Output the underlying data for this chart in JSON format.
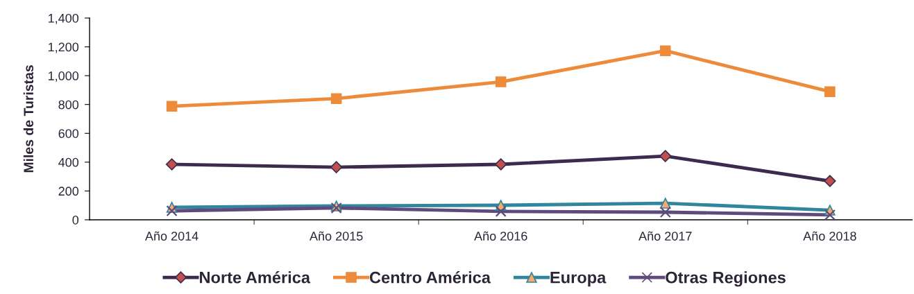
{
  "chart_data": {
    "type": "line",
    "ylabel": "Miles de Turistas",
    "categories": [
      "Año 2014",
      "Año 2015",
      "Año 2016",
      "Año 2017",
      "Año 2018"
    ],
    "series": [
      {
        "name": "Norte América",
        "color": "#3d2b4f",
        "marker": "diamond",
        "colors": [
          "#c0504d",
          "#c0504d",
          "#c0504d",
          "#c0504d",
          "#c0504d"
        ],
        "values": [
          385,
          365,
          385,
          442,
          269
        ]
      },
      {
        "name": "Centro América",
        "color": "#ed8b3a",
        "marker": "square",
        "values": [
          788,
          841,
          957,
          1173,
          889
        ]
      },
      {
        "name": "Europa",
        "color": "#31859c",
        "marker": "triangle",
        "colors": [
          "#f5a96e",
          "#f5a96e",
          "#f5a96e",
          "#f5a96e",
          "#f5a96e"
        ],
        "values": [
          87,
          96,
          101,
          115,
          67
        ]
      },
      {
        "name": "Otras Regiones",
        "color": "#604a7b",
        "marker": "cross",
        "values": [
          62,
          82,
          58,
          53,
          34
        ]
      }
    ],
    "ylim": [
      0,
      1400
    ],
    "yticks": [
      0,
      200,
      400,
      600,
      800,
      {
        "value": 1000,
        "label": "1,000"
      },
      {
        "value": 1200,
        "label": "1,200"
      },
      {
        "value": 1400,
        "label": "1,400"
      }
    ],
    "grid": false,
    "legend": "bottom",
    "line_style": "solid"
  }
}
